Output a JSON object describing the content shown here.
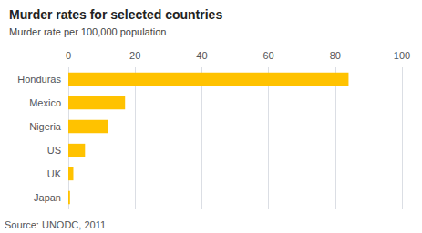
{
  "chart_data": {
    "type": "bar",
    "orientation": "horizontal",
    "title": "Murder rates for selected countries",
    "subtitle": "Murder rate per 100,000 population",
    "source": "Source: UNODC, 2011",
    "categories": [
      "Honduras",
      "Mexico",
      "Nigeria",
      "US",
      "UK",
      "Japan"
    ],
    "values": [
      84,
      17,
      12,
      5,
      1.5,
      0.5
    ],
    "color": "#FFC200",
    "xlim": [
      0,
      100
    ],
    "xticks": [
      0,
      20,
      40,
      60,
      80,
      100
    ],
    "grid": true
  }
}
